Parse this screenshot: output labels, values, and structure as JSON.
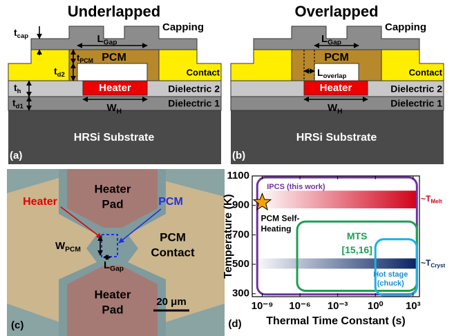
{
  "panels": [
    {
      "title": "Underlapped",
      "tag": "(a)",
      "capping": "Capping",
      "pcm": "PCM",
      "contact": "Contact",
      "heater": "Heater",
      "dielectric2": "Dielectric 2",
      "dielectric1": "Dielectric 1",
      "substrate": "HRSi Substrate",
      "t_cap": {
        "main": "t",
        "sub": "cap"
      },
      "l_gap": {
        "main": "L",
        "sub": "Gap"
      },
      "t_pcm": {
        "main": "t",
        "sub": "PCM"
      },
      "t_d2": {
        "main": "t",
        "sub": "d2"
      },
      "t_h": {
        "main": "t",
        "sub": "h"
      },
      "t_d1": {
        "main": "t",
        "sub": "d1"
      },
      "w_h": {
        "main": "W",
        "sub": "H"
      }
    },
    {
      "title": "Overlapped",
      "tag": "(b)",
      "capping": "Capping",
      "pcm": "PCM",
      "contact": "Contact",
      "heater": "Heater",
      "dielectric2": "Dielectric 2",
      "dielectric1": "Dielectric 1",
      "substrate": "HRSi Substrate",
      "l_gap": {
        "main": "L",
        "sub": "Gap"
      },
      "l_overlap": {
        "main": "L",
        "sub": "overlap"
      },
      "w_h": {
        "main": "W",
        "sub": "H"
      }
    }
  ],
  "micrograph": {
    "tag": "(c)",
    "heater_pad_top": [
      "Heater",
      "Pad"
    ],
    "heater_pad_bottom": [
      "Heater",
      "Pad"
    ],
    "heater": "Heater",
    "pcm": "PCM",
    "pcm_contact": [
      "PCM",
      "Contact"
    ],
    "w_pcm": {
      "main": "W",
      "sub": "PCM"
    },
    "l_gap": {
      "main": "L",
      "sub": "Gap"
    },
    "scale_bar": "20 μm"
  },
  "chart_data": {
    "type": "region",
    "tag": "(d)",
    "x_label": "Thermal Time Constant (s)",
    "y_label": "Temperature (K)",
    "xscale": "log",
    "xlim": [
      1.6e-10,
      3200
    ],
    "ylim": [
      280,
      1100
    ],
    "xticks": [
      {
        "value": 1e-09,
        "label": "10⁻⁹"
      },
      {
        "value": 1e-06,
        "label": "10⁻⁶"
      },
      {
        "value": 0.001,
        "label": "10⁻³"
      },
      {
        "value": 1,
        "label": "10⁰"
      },
      {
        "value": 1000,
        "label": "10³"
      }
    ],
    "yticks": [
      300,
      500,
      700,
      900,
      1100
    ],
    "bands": [
      {
        "label": {
          "main": "~T",
          "sub": "Melt"
        },
        "color": "#d0021b",
        "x": [
          4e-10,
          2000
        ],
        "y": [
          880,
          1000
        ]
      },
      {
        "label": {
          "main": "~T",
          "sub": "Cryst"
        },
        "color": "#0a2463",
        "x": [
          1.6e-10,
          2000
        ],
        "y": [
          470,
          540
        ]
      }
    ],
    "regions": [
      {
        "label": [
          "IPCS (this work)"
        ],
        "color": "#7030a0",
        "x": [
          4e-10,
          2000
        ],
        "y": [
          295,
          1090
        ]
      },
      {
        "label": [
          "MTS",
          "[15,16]"
        ],
        "color": "#1aa053",
        "x": [
          6e-07,
          2000
        ],
        "y": [
          320,
          790
        ]
      },
      {
        "label": [
          "Hot stage",
          "(chuck)"
        ],
        "color": "#1fb0e0",
        "x": [
          1,
          2000
        ],
        "y": [
          290,
          670
        ]
      }
    ],
    "marker": {
      "label": [
        "PCM Self-",
        "Heating"
      ],
      "color": "#f5a300",
      "x": 1e-09,
      "y": 920
    }
  }
}
